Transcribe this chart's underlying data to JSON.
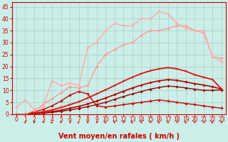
{
  "background_color": "#cceee8",
  "grid_color": "#aad4ce",
  "xlabel": "Vent moyen/en rafales ( km/h )",
  "xlim": [
    -0.5,
    23.5
  ],
  "ylim": [
    0,
    47
  ],
  "yticks": [
    0,
    5,
    10,
    15,
    20,
    25,
    30,
    35,
    40,
    45
  ],
  "xticks": [
    0,
    1,
    2,
    3,
    4,
    5,
    6,
    7,
    8,
    9,
    10,
    11,
    12,
    13,
    14,
    15,
    16,
    17,
    18,
    19,
    20,
    21,
    22,
    23
  ],
  "lines": [
    {
      "x": [
        0,
        1,
        2,
        3,
        4,
        5,
        6,
        7,
        8,
        9,
        10,
        11,
        12,
        13,
        14,
        15,
        16,
        17,
        18,
        19,
        20,
        21,
        22,
        23
      ],
      "y": [
        0,
        0,
        0.2,
        0.4,
        0.8,
        1.2,
        1.8,
        2.4,
        3.2,
        4.0,
        5.0,
        6.2,
        7.4,
        8.5,
        9.5,
        10.5,
        11.2,
        11.8,
        11.5,
        11.0,
        10.5,
        10.0,
        10.0,
        10.2
      ],
      "color": "#990000",
      "lw": 1.0,
      "marker": "D",
      "ms": 1.8
    },
    {
      "x": [
        0,
        1,
        2,
        3,
        4,
        5,
        6,
        7,
        8,
        9,
        10,
        11,
        12,
        13,
        14,
        15,
        16,
        17,
        18,
        19,
        20,
        21,
        22,
        23
      ],
      "y": [
        0,
        0,
        0.3,
        0.6,
        1.1,
        1.7,
        2.5,
        3.3,
        4.3,
        5.5,
        6.8,
        8.2,
        9.6,
        11.0,
        12.2,
        13.2,
        14.0,
        14.5,
        14.2,
        13.5,
        12.8,
        12.2,
        11.5,
        10.5
      ],
      "color": "#bb0000",
      "lw": 1.2,
      "marker": "D",
      "ms": 1.8
    },
    {
      "x": [
        0,
        1,
        2,
        3,
        4,
        5,
        6,
        7,
        8,
        9,
        10,
        11,
        12,
        13,
        14,
        15,
        16,
        17,
        18,
        19,
        20,
        21,
        22,
        23
      ],
      "y": [
        0,
        0,
        0.5,
        1.0,
        1.8,
        2.8,
        4.0,
        5.2,
        6.8,
        8.5,
        10.2,
        12.0,
        13.8,
        15.5,
        17.0,
        18.2,
        19.0,
        19.5,
        19.0,
        18.0,
        16.5,
        15.5,
        14.5,
        10.5
      ],
      "color": "#dd1111",
      "lw": 1.3,
      "marker": "+",
      "ms": 3.0
    },
    {
      "x": [
        0,
        1,
        2,
        3,
        4,
        5,
        6,
        7,
        8,
        9,
        10,
        11,
        12,
        13,
        14,
        15,
        16,
        17,
        18,
        19,
        20,
        21,
        22,
        23
      ],
      "y": [
        0,
        0,
        1.0,
        2.0,
        3.5,
        5.5,
        8.0,
        9.5,
        8.5,
        3.5,
        3.0,
        3.5,
        4.0,
        4.5,
        5.0,
        5.5,
        6.0,
        5.5,
        5.0,
        4.5,
        4.0,
        3.5,
        3.0,
        2.5
      ],
      "color": "#cc0000",
      "lw": 1.0,
      "marker": "D",
      "ms": 1.8
    },
    {
      "x": [
        0,
        1,
        2,
        3,
        4,
        5,
        6,
        7,
        8,
        9,
        10,
        11,
        12,
        13,
        14,
        15,
        16,
        17,
        18,
        19,
        20,
        21,
        22,
        23
      ],
      "y": [
        0,
        0,
        1.5,
        4.0,
        6.5,
        9.0,
        11.5,
        11.0,
        12.0,
        20.0,
        25.0,
        27.0,
        29.0,
        30.0,
        33.0,
        35.0,
        35.0,
        36.0,
        37.0,
        37.0,
        35.0,
        34.0,
        24.0,
        23.5
      ],
      "color": "#ff9999",
      "lw": 1.0,
      "marker": "D",
      "ms": 1.8
    },
    {
      "x": [
        0,
        1,
        2,
        3,
        4,
        5,
        6,
        7,
        8,
        9,
        10,
        11,
        12,
        13,
        14,
        15,
        16,
        17,
        18,
        19,
        20,
        21,
        22,
        23
      ],
      "y": [
        3,
        6,
        2,
        3,
        14,
        12,
        13,
        12,
        28,
        30,
        35,
        38,
        37,
        37,
        40,
        40,
        43,
        42,
        38,
        36,
        35,
        35,
        24,
        22
      ],
      "color": "#ffaaaa",
      "lw": 1.0,
      "marker": "D",
      "ms": 1.8
    }
  ],
  "arrow_color": "#cc0000",
  "xlabel_color": "#cc0000",
  "xlabel_fontsize": 7,
  "xlabel_fontweight": "bold",
  "tick_color": "#cc0000",
  "tick_fontsize": 5.5,
  "spine_color": "#cc0000"
}
